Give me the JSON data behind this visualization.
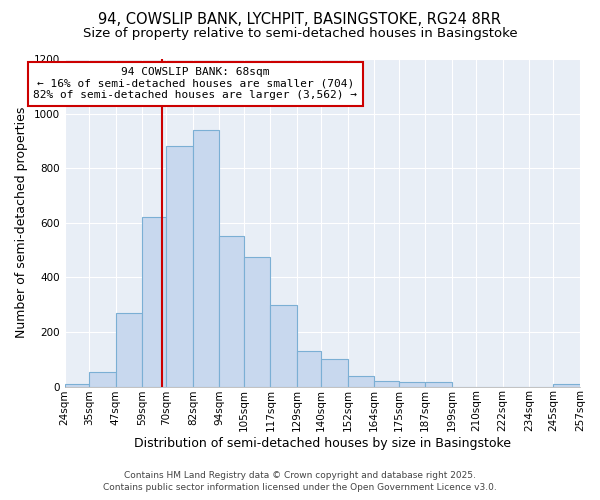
{
  "title_line1": "94, COWSLIP BANK, LYCHPIT, BASINGSTOKE, RG24 8RR",
  "title_line2": "Size of property relative to semi-detached houses in Basingstoke",
  "xlabel": "Distribution of semi-detached houses by size in Basingstoke",
  "ylabel": "Number of semi-detached properties",
  "bin_labels": [
    "24sqm",
    "35sqm",
    "47sqm",
    "59sqm",
    "70sqm",
    "82sqm",
    "94sqm",
    "105sqm",
    "117sqm",
    "129sqm",
    "140sqm",
    "152sqm",
    "164sqm",
    "175sqm",
    "187sqm",
    "199sqm",
    "210sqm",
    "222sqm",
    "234sqm",
    "245sqm",
    "257sqm"
  ],
  "bin_edges": [
    24,
    35,
    47,
    59,
    70,
    82,
    94,
    105,
    117,
    129,
    140,
    152,
    164,
    175,
    187,
    199,
    210,
    222,
    234,
    245,
    257
  ],
  "bar_heights": [
    10,
    55,
    270,
    620,
    880,
    940,
    550,
    475,
    300,
    130,
    100,
    40,
    20,
    15,
    15,
    0,
    0,
    0,
    0,
    10
  ],
  "bar_color": "#c8d8ee",
  "bar_edgecolor": "#7bafd4",
  "vline_x": 68,
  "vline_color": "#cc0000",
  "ylim": [
    0,
    1200
  ],
  "yticks": [
    0,
    200,
    400,
    600,
    800,
    1000,
    1200
  ],
  "annotation_title": "94 COWSLIP BANK: 68sqm",
  "annotation_line2": "← 16% of semi-detached houses are smaller (704)",
  "annotation_line3": "82% of semi-detached houses are larger (3,562) →",
  "annotation_box_color": "#ffffff",
  "annotation_box_edgecolor": "#cc0000",
  "footer_line1": "Contains HM Land Registry data © Crown copyright and database right 2025.",
  "footer_line2": "Contains public sector information licensed under the Open Government Licence v3.0.",
  "fig_background_color": "#ffffff",
  "plot_background_color": "#e8eef6",
  "grid_color": "#ffffff",
  "title_fontsize": 10.5,
  "subtitle_fontsize": 9.5,
  "axis_label_fontsize": 9,
  "tick_fontsize": 7.5,
  "footer_fontsize": 6.5,
  "annotation_fontsize": 8
}
